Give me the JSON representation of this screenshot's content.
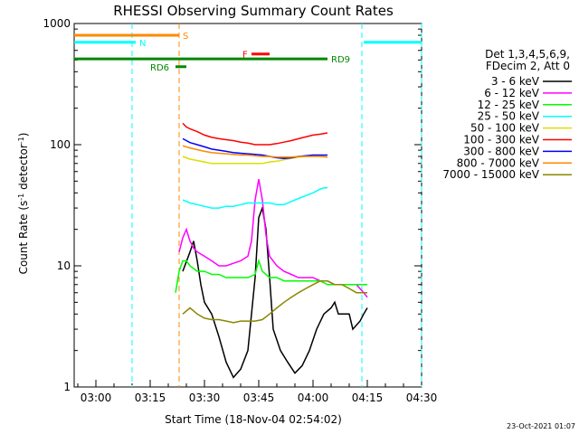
{
  "chart_data": {
    "type": "line",
    "title": "RHESSI Observing Summary Count Rates",
    "xlabel": "Start Time (18-Nov-04 02:54:02)",
    "ylabel": "Count Rate (s",
    "ylabel_sup": "-1",
    "ylabel_tail": " detector",
    "ylabel_end": ")",
    "y_scale": "log",
    "ylim": [
      1,
      1000
    ],
    "x_unit": "minutes since 02:54:02",
    "xlim": [
      0,
      96
    ],
    "x_ticks": [
      {
        "value": 6,
        "label": "03:00"
      },
      {
        "value": 21,
        "label": "03:15"
      },
      {
        "value": 36,
        "label": "03:30"
      },
      {
        "value": 51,
        "label": "03:45"
      },
      {
        "value": 66,
        "label": "04:00"
      },
      {
        "value": 81,
        "label": "04:15"
      },
      {
        "value": 96,
        "label": "04:30"
      }
    ],
    "y_ticks": [
      {
        "value": 1,
        "label": "1"
      },
      {
        "value": 10,
        "label": "10"
      },
      {
        "value": 100,
        "label": "100"
      },
      {
        "value": 1000,
        "label": "1000"
      }
    ],
    "legend_header": [
      "Det 1,3,4,5,6,9,",
      "FDecim 2, Att 0"
    ],
    "timestamp": "23-Oct-2021 01:07",
    "series": [
      {
        "name": "3 - 6 keV",
        "color": "#000000",
        "points": [
          [
            30,
            9
          ],
          [
            32,
            13
          ],
          [
            33,
            16
          ],
          [
            34,
            11
          ],
          [
            35,
            7
          ],
          [
            36,
            5
          ],
          [
            38,
            4
          ],
          [
            40,
            2.6
          ],
          [
            42,
            1.6
          ],
          [
            44,
            1.2
          ],
          [
            46,
            1.4
          ],
          [
            48,
            2
          ],
          [
            50,
            8
          ],
          [
            51,
            25
          ],
          [
            52,
            30
          ],
          [
            53,
            20
          ],
          [
            54,
            8
          ],
          [
            55,
            3
          ],
          [
            57,
            2
          ],
          [
            59,
            1.6
          ],
          [
            61,
            1.3
          ],
          [
            63,
            1.5
          ],
          [
            65,
            2
          ],
          [
            67,
            3
          ],
          [
            69,
            4
          ],
          [
            71,
            4.5
          ],
          [
            72,
            5
          ],
          [
            73,
            4
          ],
          [
            75,
            4
          ],
          [
            76,
            4
          ],
          [
            77,
            3
          ],
          [
            79,
            3.5
          ],
          [
            80,
            4
          ],
          [
            81,
            4.5
          ]
        ]
      },
      {
        "name": "6 - 12 keV",
        "color": "#ff00ff",
        "points": [
          [
            29,
            13
          ],
          [
            30,
            17
          ],
          [
            31,
            20
          ],
          [
            32,
            16
          ],
          [
            33,
            14
          ],
          [
            34,
            13
          ],
          [
            36,
            12
          ],
          [
            38,
            11
          ],
          [
            40,
            10
          ],
          [
            42,
            10
          ],
          [
            44,
            10.5
          ],
          [
            46,
            11
          ],
          [
            48,
            12
          ],
          [
            49,
            16
          ],
          [
            50,
            35
          ],
          [
            51,
            52
          ],
          [
            52,
            35
          ],
          [
            53,
            18
          ],
          [
            54,
            12
          ],
          [
            56,
            10
          ],
          [
            58,
            9
          ],
          [
            60,
            8.5
          ],
          [
            62,
            8
          ],
          [
            64,
            8
          ],
          [
            66,
            8
          ],
          [
            68,
            7.5
          ],
          [
            70,
            7.5
          ],
          [
            72,
            7
          ],
          [
            74,
            7
          ],
          [
            76,
            7
          ],
          [
            78,
            7
          ],
          [
            80,
            6
          ],
          [
            81,
            5.5
          ]
        ]
      },
      {
        "name": "12 - 25 keV",
        "color": "#00ff00",
        "points": [
          [
            28,
            6
          ],
          [
            29,
            9
          ],
          [
            30,
            11
          ],
          [
            31,
            11
          ],
          [
            32,
            10
          ],
          [
            34,
            9
          ],
          [
            36,
            9
          ],
          [
            38,
            8.5
          ],
          [
            40,
            8.5
          ],
          [
            42,
            8
          ],
          [
            44,
            8
          ],
          [
            46,
            8
          ],
          [
            48,
            8
          ],
          [
            50,
            8.5
          ],
          [
            51,
            11
          ],
          [
            52,
            9
          ],
          [
            54,
            8
          ],
          [
            56,
            8
          ],
          [
            58,
            7.5
          ],
          [
            60,
            7.5
          ],
          [
            62,
            7.5
          ],
          [
            64,
            7.5
          ],
          [
            66,
            7.5
          ],
          [
            68,
            7.5
          ],
          [
            70,
            7
          ],
          [
            72,
            7
          ],
          [
            74,
            7
          ],
          [
            76,
            7
          ],
          [
            78,
            7
          ],
          [
            80,
            7
          ],
          [
            81,
            7
          ]
        ]
      },
      {
        "name": "25 - 50 keV",
        "color": "#00ffff",
        "points": [
          [
            30,
            35
          ],
          [
            32,
            33
          ],
          [
            34,
            32
          ],
          [
            36,
            31
          ],
          [
            38,
            30
          ],
          [
            40,
            30
          ],
          [
            42,
            31
          ],
          [
            44,
            31
          ],
          [
            46,
            32
          ],
          [
            48,
            33
          ],
          [
            50,
            33
          ],
          [
            52,
            33
          ],
          [
            54,
            33
          ],
          [
            56,
            32
          ],
          [
            58,
            32
          ],
          [
            60,
            34
          ],
          [
            62,
            36
          ],
          [
            64,
            38
          ],
          [
            66,
            40
          ],
          [
            68,
            43
          ],
          [
            69,
            44
          ],
          [
            70,
            44
          ]
        ]
      },
      {
        "name": "50 - 100 keV",
        "color": "#dddd00",
        "points": [
          [
            30,
            80
          ],
          [
            32,
            76
          ],
          [
            34,
            74
          ],
          [
            36,
            72
          ],
          [
            38,
            70
          ],
          [
            40,
            70
          ],
          [
            42,
            70
          ],
          [
            44,
            70
          ],
          [
            46,
            70
          ],
          [
            48,
            70
          ],
          [
            50,
            70
          ],
          [
            52,
            70
          ],
          [
            54,
            72
          ],
          [
            56,
            73
          ],
          [
            58,
            75
          ],
          [
            60,
            77
          ],
          [
            62,
            79
          ],
          [
            64,
            80
          ],
          [
            66,
            81
          ],
          [
            68,
            80
          ],
          [
            70,
            79
          ]
        ]
      },
      {
        "name": "100 - 300 keV",
        "color": "#ff0000",
        "points": [
          [
            30,
            150
          ],
          [
            31,
            140
          ],
          [
            32,
            135
          ],
          [
            34,
            128
          ],
          [
            36,
            120
          ],
          [
            38,
            115
          ],
          [
            40,
            112
          ],
          [
            42,
            110
          ],
          [
            44,
            108
          ],
          [
            46,
            105
          ],
          [
            48,
            103
          ],
          [
            50,
            100
          ],
          [
            52,
            100
          ],
          [
            54,
            100
          ],
          [
            56,
            102
          ],
          [
            58,
            105
          ],
          [
            60,
            108
          ],
          [
            62,
            112
          ],
          [
            64,
            116
          ],
          [
            66,
            120
          ],
          [
            68,
            122
          ],
          [
            70,
            125
          ]
        ]
      },
      {
        "name": "300 - 800 keV",
        "color": "#0000ff",
        "points": [
          [
            30,
            112
          ],
          [
            32,
            104
          ],
          [
            34,
            100
          ],
          [
            36,
            96
          ],
          [
            38,
            92
          ],
          [
            40,
            90
          ],
          [
            42,
            88
          ],
          [
            44,
            86
          ],
          [
            46,
            85
          ],
          [
            48,
            84
          ],
          [
            50,
            83
          ],
          [
            52,
            82
          ],
          [
            54,
            80
          ],
          [
            56,
            78
          ],
          [
            58,
            77
          ],
          [
            60,
            78
          ],
          [
            62,
            80
          ],
          [
            64,
            81
          ],
          [
            66,
            82
          ],
          [
            68,
            82
          ],
          [
            70,
            82
          ]
        ]
      },
      {
        "name": "800 - 7000 keV",
        "color": "#ff8800",
        "points": [
          [
            30,
            98
          ],
          [
            32,
            94
          ],
          [
            34,
            91
          ],
          [
            36,
            88
          ],
          [
            38,
            86
          ],
          [
            40,
            85
          ],
          [
            42,
            84
          ],
          [
            44,
            83
          ],
          [
            46,
            82
          ],
          [
            48,
            82
          ],
          [
            50,
            81
          ],
          [
            52,
            80
          ],
          [
            54,
            80
          ],
          [
            56,
            79
          ],
          [
            58,
            79
          ],
          [
            60,
            79
          ],
          [
            62,
            80
          ],
          [
            64,
            80
          ],
          [
            66,
            80
          ],
          [
            68,
            80
          ],
          [
            70,
            79
          ]
        ]
      },
      {
        "name": "7000 - 15000 keV",
        "color": "#888800",
        "points": [
          [
            30,
            4
          ],
          [
            32,
            4.5
          ],
          [
            34,
            4
          ],
          [
            36,
            3.7
          ],
          [
            38,
            3.6
          ],
          [
            40,
            3.6
          ],
          [
            42,
            3.5
          ],
          [
            44,
            3.4
          ],
          [
            46,
            3.5
          ],
          [
            48,
            3.5
          ],
          [
            50,
            3.5
          ],
          [
            52,
            3.6
          ],
          [
            54,
            4
          ],
          [
            56,
            4.5
          ],
          [
            58,
            5
          ],
          [
            60,
            5.5
          ],
          [
            62,
            6
          ],
          [
            64,
            6.5
          ],
          [
            66,
            7
          ],
          [
            68,
            7.5
          ],
          [
            70,
            7.5
          ],
          [
            72,
            7
          ],
          [
            74,
            7
          ],
          [
            76,
            6.5
          ],
          [
            78,
            6
          ],
          [
            80,
            6
          ],
          [
            81,
            6
          ]
        ]
      }
    ],
    "annotations": [
      {
        "label": "S",
        "color": "#ff8800",
        "x_start": 0,
        "x_end": 29,
        "y": 800
      },
      {
        "label": "N",
        "color": "#00ffff",
        "x_start": 0,
        "x_end": 17,
        "y": 700,
        "x2_start": 80,
        "x2_end": 96
      },
      {
        "label": "F",
        "color": "#ff0000",
        "x_start": 49,
        "x_end": 54,
        "y": 560
      },
      {
        "label": "RD6",
        "color": "#008800",
        "x_start": 28,
        "x_end": 31,
        "y": 440
      },
      {
        "label": "RD9",
        "color": "#008800",
        "x_start": 0,
        "x_end": 70,
        "y": 510
      }
    ],
    "night_markers_cyan": [
      16,
      79.5,
      96
    ],
    "saa_markers_orange": [
      29
    ]
  }
}
